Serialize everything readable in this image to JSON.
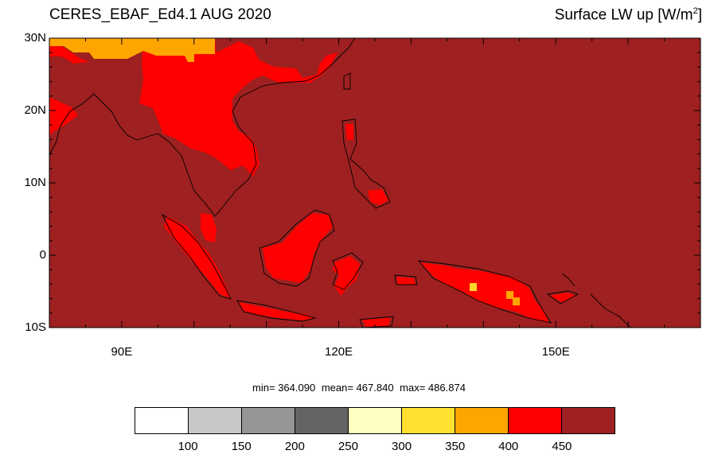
{
  "title": {
    "left": "CERES_EBAF_Ed4.1 AUG 2020",
    "right_main": "Surface LW up [W/m",
    "right_sup": "2",
    "right_end": "]"
  },
  "stats": {
    "min": "min= 364.090",
    "mean": "mean= 467.840",
    "max": "max= 486.874"
  },
  "map": {
    "lon_range": [
      80,
      170
    ],
    "lat_range": [
      -10,
      30
    ],
    "lat_ticks": [
      {
        "value": 30,
        "label": "30N"
      },
      {
        "value": 20,
        "label": "20N"
      },
      {
        "value": 10,
        "label": "10N"
      },
      {
        "value": 0,
        "label": "0"
      },
      {
        "value": -10,
        "label": "10S"
      }
    ],
    "lon_ticks": [
      {
        "value": 90,
        "label": "90E"
      },
      {
        "value": 120,
        "label": "120E"
      },
      {
        "value": 150,
        "label": "150E"
      }
    ],
    "background_color": "#9e2020",
    "colors": {
      "400-450": "#ff0000",
      "350-400": "#ffa500",
      "300-350": "#ffd72a",
      ">450": "#9e2020"
    }
  },
  "colorbar": {
    "colors": [
      "#ffffff",
      "#c8c8c8",
      "#969696",
      "#646464",
      "#ffffc3",
      "#ffe130",
      "#ffa500",
      "#ff0000",
      "#9e2020"
    ],
    "labels": [
      "100",
      "150",
      "200",
      "250",
      "300",
      "350",
      "400",
      "450"
    ]
  }
}
